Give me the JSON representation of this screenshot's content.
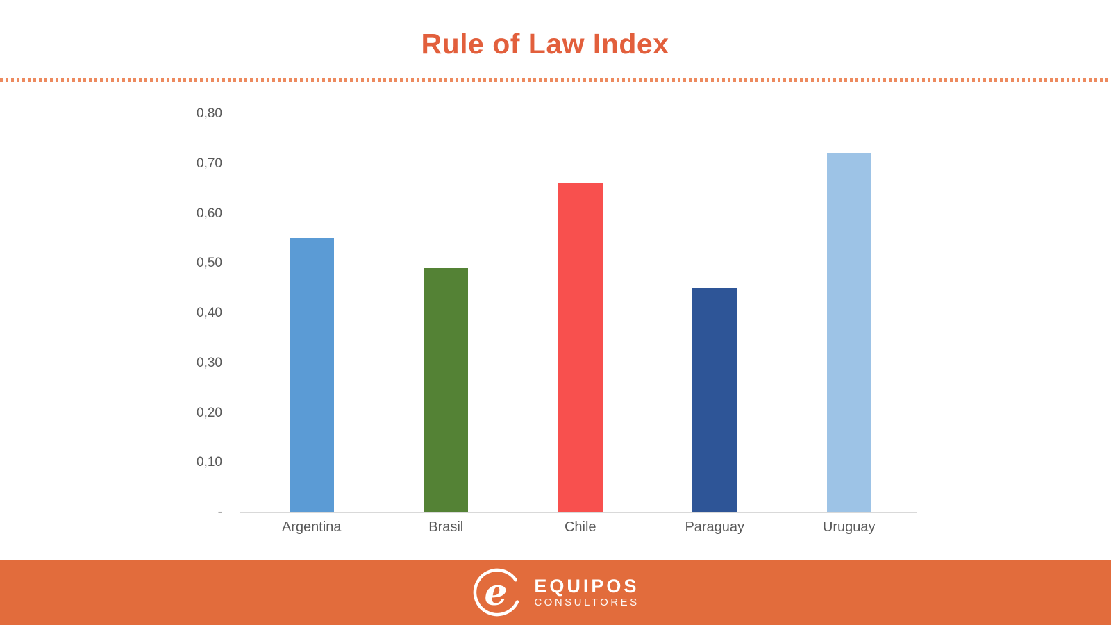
{
  "title": {
    "text": "Rule of Law Index",
    "color": "#e25f3c"
  },
  "separator": {
    "color": "#ed8a5f"
  },
  "chart_data": {
    "type": "bar",
    "title": "Rule of Law Index",
    "categories": [
      "Argentina",
      "Brasil",
      "Chile",
      "Paraguay",
      "Uruguay"
    ],
    "values": [
      0.55,
      0.49,
      0.66,
      0.45,
      0.72
    ],
    "bar_colors": [
      "#5b9bd5",
      "#548235",
      "#f8504e",
      "#2e5597",
      "#9dc3e6"
    ],
    "xlabel": "",
    "ylabel": "",
    "ylim": [
      0,
      0.8
    ],
    "grid": "off",
    "legend": "none",
    "decimal_style": "comma",
    "axis_line_color": "#d9d9d9",
    "tick_text_color": "#595959",
    "y_ticks": [
      {
        "label": "0,80",
        "value": 0.8
      },
      {
        "label": "0,70",
        "value": 0.7
      },
      {
        "label": "0,60",
        "value": 0.6
      },
      {
        "label": "0,50",
        "value": 0.5
      },
      {
        "label": "0,40",
        "value": 0.4
      },
      {
        "label": "0,30",
        "value": 0.3
      },
      {
        "label": "0,20",
        "value": 0.2
      },
      {
        "label": "0,10",
        "value": 0.1
      },
      {
        "label": "-",
        "value": 0
      }
    ]
  },
  "footer": {
    "brand": "EQUIPOS",
    "subtitle": "CONSULTORES",
    "background": "#e26c3c",
    "logo_letter": "e"
  }
}
